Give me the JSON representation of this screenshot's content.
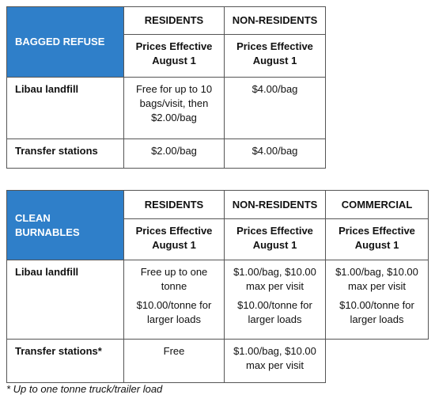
{
  "tables": [
    {
      "title": "BAGGED REFUSE",
      "headers": [
        "RESIDENTS",
        "NON-RESIDENTS"
      ],
      "subheaders": [
        "Prices Effective August 1",
        "Prices Effective August 1"
      ],
      "rows": [
        {
          "label": "Libau landfill",
          "cells": [
            [
              "Free for up to 10 bags/visit, then $2.00/bag"
            ],
            [
              "$4.00/bag"
            ]
          ]
        },
        {
          "label": "Transfer stations",
          "cells": [
            [
              "$2.00/bag"
            ],
            [
              "$4.00/bag"
            ]
          ]
        }
      ]
    },
    {
      "title": "CLEAN BURNABLES",
      "headers": [
        "RESIDENTS",
        "NON-RESIDENTS",
        "COMMERCIAL"
      ],
      "subheaders": [
        "Prices Effective August 1",
        "Prices Effective August 1",
        "Prices Effective August 1"
      ],
      "rows": [
        {
          "label": "Libau landfill",
          "cells": [
            [
              "Free up to one tonne",
              "$10.00/tonne for larger loads"
            ],
            [
              "$1.00/bag, $10.00 max per visit",
              "$10.00/tonne for larger loads"
            ],
            [
              "$1.00/bag, $10.00 max per visit",
              "$10.00/tonne for larger loads"
            ]
          ]
        },
        {
          "label": "Transfer stations*",
          "cells": [
            [
              "Free"
            ],
            [
              "$1.00/bag, $10.00 max per visit"
            ]
          ]
        }
      ]
    }
  ],
  "footnote": "* Up to one tonne truck/trailer load"
}
